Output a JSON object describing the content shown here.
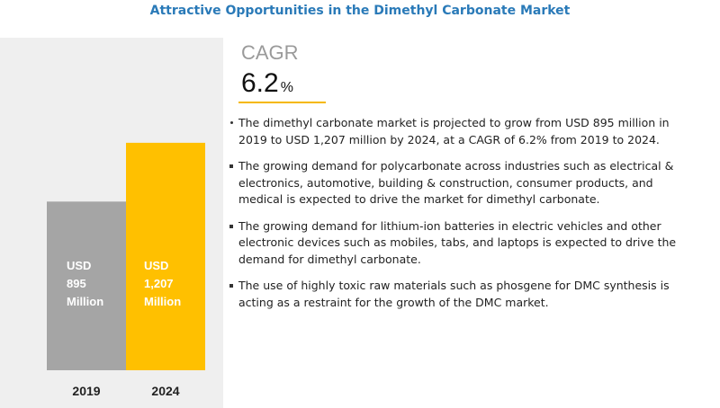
{
  "title": "Attractive Opportunities in the Dimethyl Carbonate Market",
  "cagr": {
    "label": "CAGR",
    "value": "6.2",
    "unit": "%"
  },
  "chart_data": {
    "type": "bar",
    "categories": [
      "2019",
      "2024"
    ],
    "values": [
      895,
      1207
    ],
    "bar_labels": [
      [
        "USD",
        "895",
        "Million"
      ],
      [
        "USD",
        "1,207",
        "Million"
      ]
    ],
    "colors": [
      "#a5a5a5",
      "#ffc000"
    ]
  },
  "bullets": [
    "The dimethyl carbonate market is projected to grow from USD 895 million in 2019 to USD 1,207 million by 2024, at a CAGR of 6.2% from 2019 to 2024.",
    "The growing demand for polycarbonate across industries such as electrical & electronics, automotive, building & construction, consumer products, and medical is expected to drive the market for dimethyl carbonate.",
    "The growing demand for lithium-ion batteries in electric vehicles and other electronic devices such as mobiles, tabs, and laptops is expected to drive the demand for dimethyl carbonate.",
    "The use of highly toxic raw materials such as phosgene for DMC synthesis is acting as a restraint for the growth of the DMC market."
  ]
}
